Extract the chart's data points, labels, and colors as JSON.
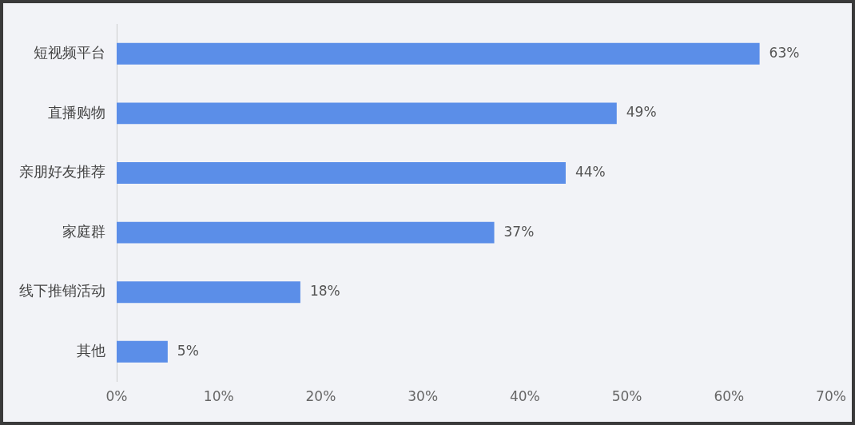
{
  "chart_data": {
    "type": "bar",
    "orientation": "horizontal",
    "categories": [
      "短视频平台",
      "直播购物",
      "亲朋好友推荐",
      "家庭群",
      "线下推销活动",
      "其他"
    ],
    "values": [
      63,
      49,
      44,
      37,
      18,
      5
    ],
    "value_labels": [
      "63%",
      "49%",
      "44%",
      "37%",
      "18%",
      "5%"
    ],
    "color": "#5b8ee8",
    "xlim": [
      0,
      70
    ],
    "xticks": [
      {
        "value": 0,
        "label": "0%"
      },
      {
        "value": 10,
        "label": "10%"
      },
      {
        "value": 20,
        "label": "20%"
      },
      {
        "value": 30,
        "label": "30%"
      },
      {
        "value": 40,
        "label": "40%"
      },
      {
        "value": 50,
        "label": "50%"
      },
      {
        "value": 60,
        "label": "60%"
      },
      {
        "value": 70,
        "label": "70%"
      }
    ],
    "grid": false,
    "legend": false
  }
}
